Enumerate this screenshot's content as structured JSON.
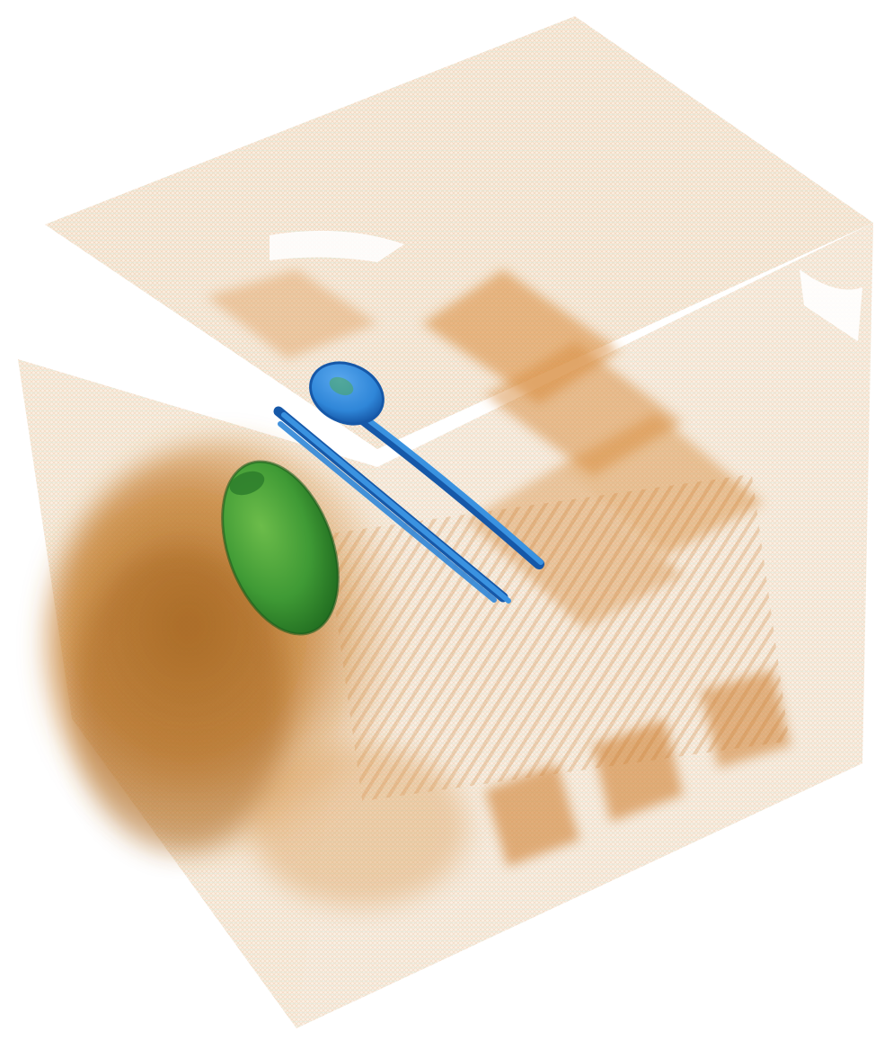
{
  "scene": {
    "kind": "3D CT volume rendering",
    "colors": {
      "background": "#ffffff",
      "outer_shell_orange": "#e8b078",
      "outer_shell_green": "#a8d8b0",
      "dense_orange": "#c97d2a",
      "medium_orange": "#dd9a4e",
      "dark_mass": "#a86820",
      "green_object": "#3f9a35",
      "green_object_dark": "#1f6a1f",
      "blue_metal": "#2f86d8",
      "blue_metal_dark": "#1658a8"
    },
    "objects": [
      {
        "name": "container-box",
        "material": "low-density"
      },
      {
        "name": "food-mass",
        "material": "organic"
      },
      {
        "name": "ovoid-object",
        "material": "medium-density"
      },
      {
        "name": "spoon",
        "material": "metal"
      },
      {
        "name": "chopsticks",
        "material": "metal"
      },
      {
        "name": "tray-compartments",
        "material": "organic"
      }
    ]
  }
}
